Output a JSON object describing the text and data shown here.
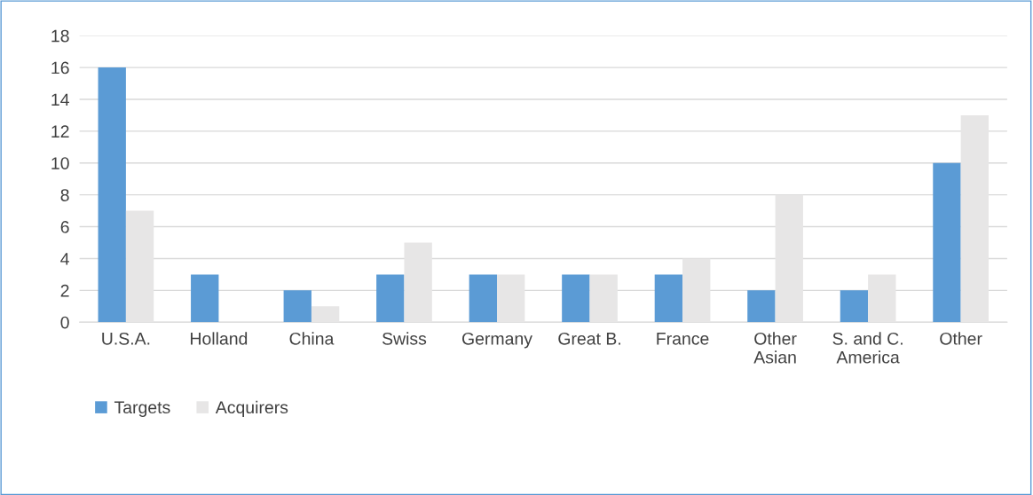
{
  "chart_data": {
    "type": "bar",
    "categories": [
      "U.S.A.",
      "Holland",
      "China",
      "Swiss",
      "Germany",
      "Great B.",
      "France",
      "Other\nAsian",
      "S. and C.\nAmerica",
      "Other"
    ],
    "series": [
      {
        "name": "Targets",
        "color": "#5b9bd5",
        "values": [
          16,
          3,
          2,
          3,
          3,
          3,
          3,
          2,
          2,
          10
        ]
      },
      {
        "name": "Acquirers",
        "color": "#e7e6e6",
        "values": [
          7,
          0,
          1,
          5,
          3,
          3,
          4,
          8,
          3,
          13
        ]
      }
    ],
    "ylim": [
      0,
      18
    ],
    "yticks": [
      0,
      2,
      4,
      6,
      8,
      10,
      12,
      14,
      16,
      18
    ],
    "grid": "y",
    "legend": "bottom left"
  }
}
